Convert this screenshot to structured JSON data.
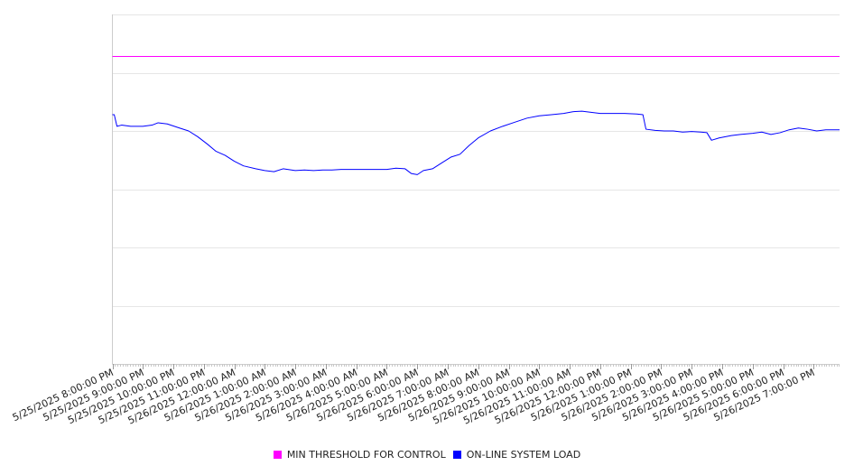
{
  "chart_data": {
    "type": "line",
    "title": "",
    "xlabel": "",
    "ylabel": "",
    "ylim": [
      0,
      6
    ],
    "grid": true,
    "legend_position": "bottom",
    "x_tick_labels": [
      "5/25/2025 8:00:00 PM",
      "5/25/2025 9:00:00 PM",
      "5/25/2025 10:00:00 PM",
      "5/25/2025 11:00:00 PM",
      "5/26/2025 12:00:00 AM",
      "5/26/2025 1:00:00 AM",
      "5/26/2025 2:00:00 AM",
      "5/26/2025 3:00:00 AM",
      "5/26/2025 4:00:00 AM",
      "5/26/2025 5:00:00 AM",
      "5/26/2025 6:00:00 AM",
      "5/26/2025 7:00:00 AM",
      "5/26/2025 8:00:00 AM",
      "5/26/2025 9:00:00 AM",
      "5/26/2025 10:00:00 AM",
      "5/26/2025 11:00:00 AM",
      "5/26/2025 12:00:00 PM",
      "5/26/2025 1:00:00 PM",
      "5/26/2025 2:00:00 PM",
      "5/26/2025 3:00:00 PM",
      "5/26/2025 4:00:00 PM",
      "5/26/2025 5:00:00 PM",
      "5/26/2025 6:00:00 PM",
      "5/26/2025 7:00:00 PM"
    ],
    "series": [
      {
        "name": "MIN THRESHOLD FOR CONTROL",
        "color": "#ff00ff",
        "points": [
          [
            0,
            5.28
          ],
          [
            23.85,
            5.28
          ]
        ]
      },
      {
        "name": "ON-LINE SYSTEM LOAD",
        "color": "#0000ff",
        "points": [
          [
            0,
            4.28
          ],
          [
            0.06,
            4.28
          ],
          [
            0.15,
            4.08
          ],
          [
            0.3,
            4.1
          ],
          [
            0.6,
            4.08
          ],
          [
            1.0,
            4.08
          ],
          [
            1.3,
            4.1
          ],
          [
            1.5,
            4.14
          ],
          [
            1.8,
            4.12
          ],
          [
            2.2,
            4.05
          ],
          [
            2.5,
            4.0
          ],
          [
            2.8,
            3.9
          ],
          [
            3.1,
            3.78
          ],
          [
            3.4,
            3.65
          ],
          [
            3.7,
            3.58
          ],
          [
            4.0,
            3.48
          ],
          [
            4.3,
            3.4
          ],
          [
            4.7,
            3.35
          ],
          [
            5.0,
            3.32
          ],
          [
            5.3,
            3.3
          ],
          [
            5.6,
            3.35
          ],
          [
            6.0,
            3.32
          ],
          [
            6.3,
            3.33
          ],
          [
            6.6,
            3.32
          ],
          [
            6.9,
            3.33
          ],
          [
            7.2,
            3.33
          ],
          [
            7.5,
            3.34
          ],
          [
            7.8,
            3.34
          ],
          [
            8.1,
            3.34
          ],
          [
            8.4,
            3.34
          ],
          [
            8.7,
            3.34
          ],
          [
            9.0,
            3.34
          ],
          [
            9.3,
            3.36
          ],
          [
            9.6,
            3.35
          ],
          [
            9.8,
            3.27
          ],
          [
            10.0,
            3.25
          ],
          [
            10.2,
            3.32
          ],
          [
            10.5,
            3.35
          ],
          [
            10.8,
            3.45
          ],
          [
            11.1,
            3.55
          ],
          [
            11.4,
            3.6
          ],
          [
            11.7,
            3.75
          ],
          [
            12.0,
            3.88
          ],
          [
            12.4,
            4.0
          ],
          [
            12.8,
            4.08
          ],
          [
            13.2,
            4.15
          ],
          [
            13.6,
            4.22
          ],
          [
            14.0,
            4.26
          ],
          [
            14.4,
            4.28
          ],
          [
            14.8,
            4.3
          ],
          [
            15.1,
            4.33
          ],
          [
            15.4,
            4.34
          ],
          [
            15.7,
            4.32
          ],
          [
            16.0,
            4.3
          ],
          [
            16.4,
            4.3
          ],
          [
            16.8,
            4.3
          ],
          [
            17.2,
            4.29
          ],
          [
            17.4,
            4.28
          ],
          [
            17.5,
            4.03
          ],
          [
            17.8,
            4.01
          ],
          [
            18.1,
            4.0
          ],
          [
            18.4,
            4.0
          ],
          [
            18.7,
            3.98
          ],
          [
            19.0,
            3.99
          ],
          [
            19.3,
            3.98
          ],
          [
            19.5,
            3.97
          ],
          [
            19.65,
            3.84
          ],
          [
            19.9,
            3.88
          ],
          [
            20.3,
            3.92
          ],
          [
            20.6,
            3.94
          ],
          [
            21.0,
            3.96
          ],
          [
            21.3,
            3.98
          ],
          [
            21.6,
            3.94
          ],
          [
            21.9,
            3.97
          ],
          [
            22.2,
            4.02
          ],
          [
            22.5,
            4.05
          ],
          [
            22.8,
            4.03
          ],
          [
            23.1,
            4.0
          ],
          [
            23.4,
            4.02
          ],
          [
            23.6,
            4.02
          ],
          [
            23.85,
            4.02
          ]
        ]
      }
    ]
  }
}
